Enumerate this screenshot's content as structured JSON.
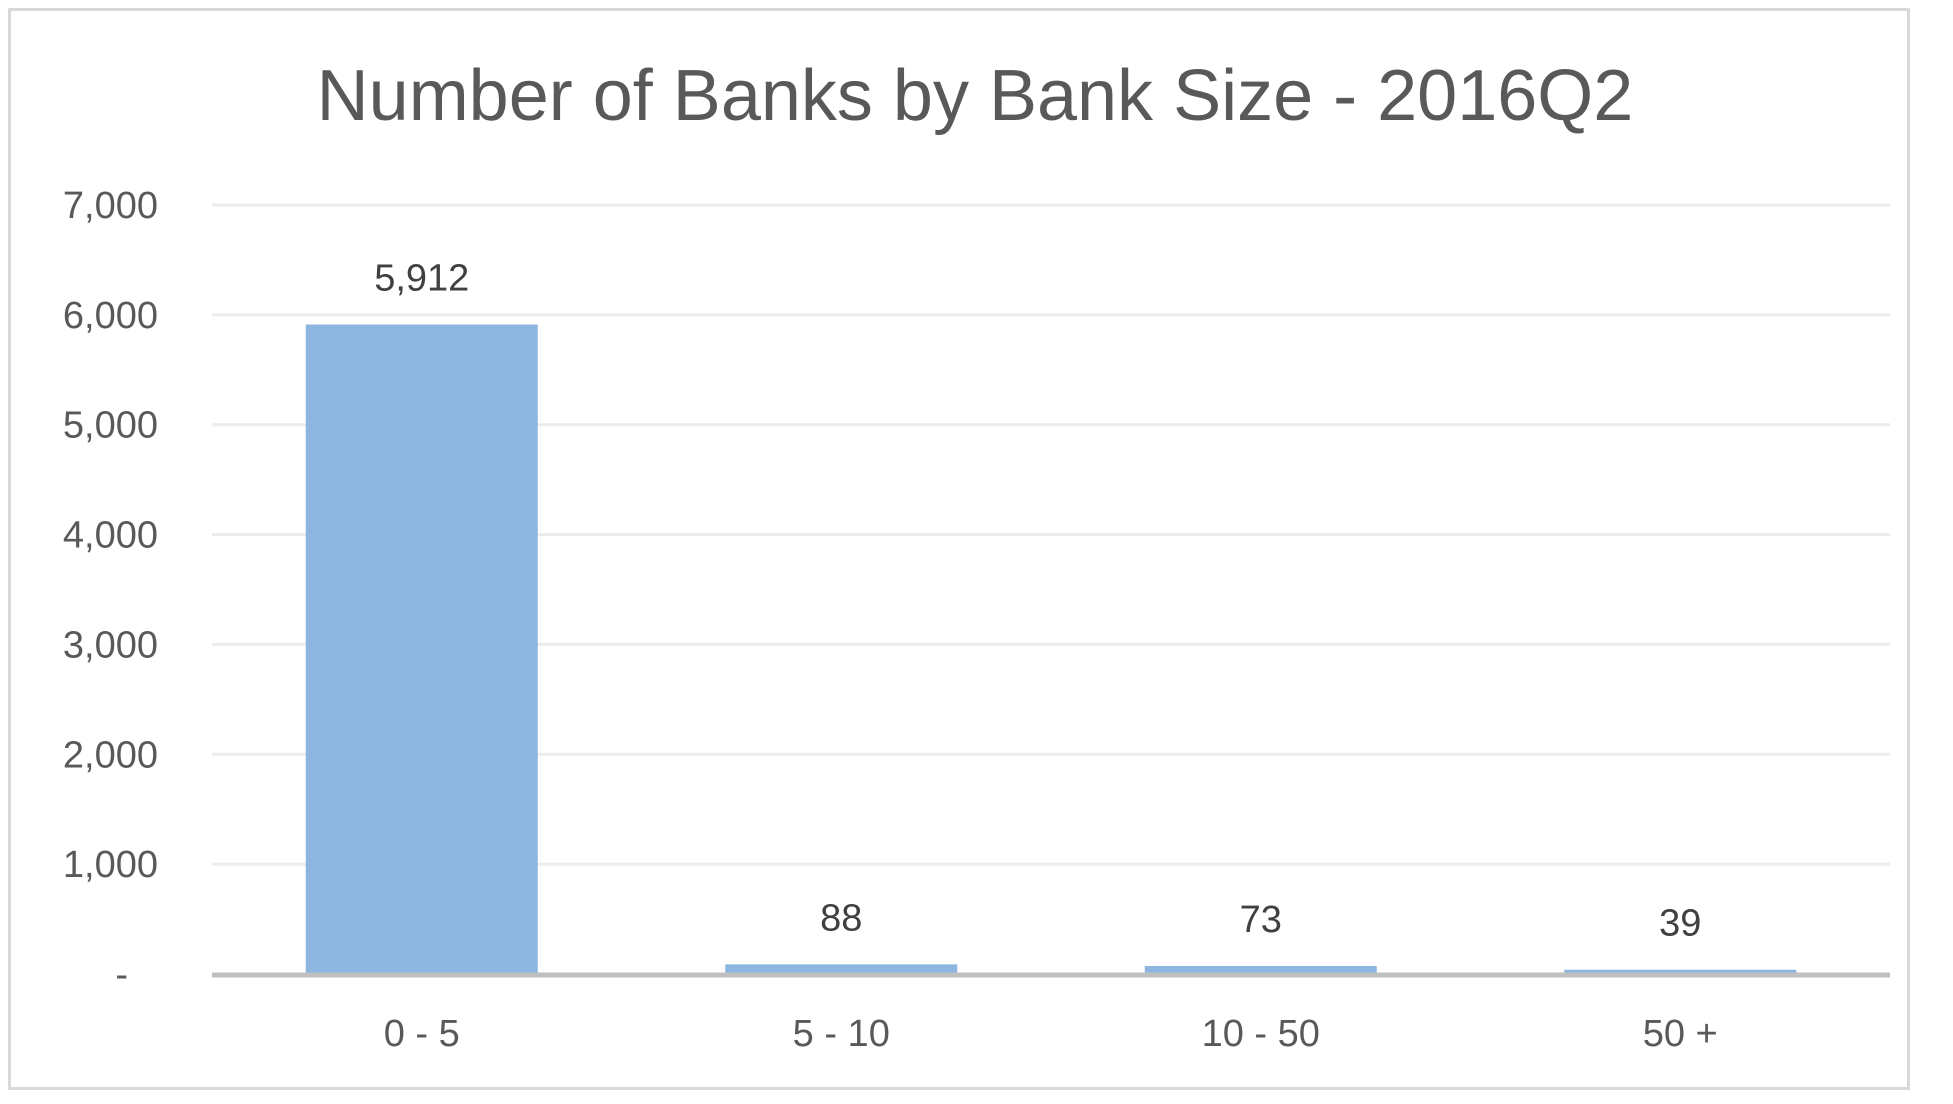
{
  "chart_data": {
    "type": "bar",
    "title": "Number of Banks by Bank Size - 2016Q2",
    "categories": [
      "0 - 5",
      "5 - 10",
      "10 - 50",
      "50 +"
    ],
    "values": [
      5912,
      88,
      73,
      39
    ],
    "data_labels": [
      "5,912",
      "88",
      "73",
      "39"
    ],
    "ylim": [
      0,
      7000
    ],
    "y_ticks": [
      0,
      1000,
      2000,
      3000,
      4000,
      5000,
      6000,
      7000
    ],
    "y_tick_labels": [
      "-",
      "1,000",
      "2,000",
      "3,000",
      "4,000",
      "5,000",
      "6,000",
      "7,000"
    ],
    "xlabel": "",
    "ylabel": "",
    "grid": true,
    "legend": "none",
    "colors": {
      "bar": "#8cb6e0",
      "gridline": "#ececec",
      "axis": "#bfbfbf",
      "frame": "#d9d9d9",
      "title": "#595959",
      "tick": "#595959",
      "data_label": "#404040"
    }
  }
}
